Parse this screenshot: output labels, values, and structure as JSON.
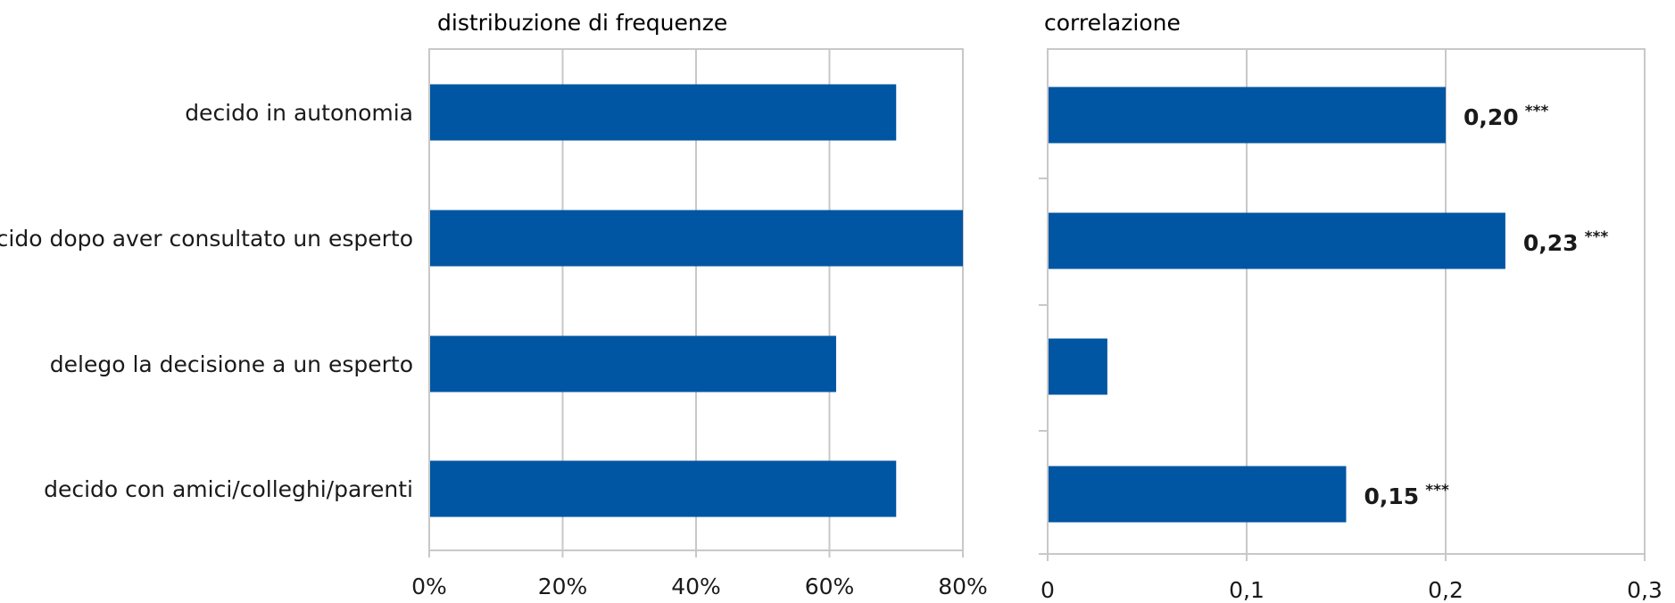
{
  "colors": {
    "bar": "#0056a2",
    "grid": "#c8c8c8",
    "text": "#1a1a1a"
  },
  "chart_data": [
    {
      "type": "bar",
      "orientation": "horizontal",
      "title": "distribuzione di frequenze",
      "categories": [
        "decido in autonomia",
        "decido dopo aver consultato un esperto",
        "delego la decisione a un esperto",
        "decido con amici/colleghi/parenti"
      ],
      "values": [
        70,
        80,
        61,
        70
      ],
      "xlim": [
        0,
        80
      ],
      "xticks": [
        0,
        20,
        40,
        60,
        80
      ],
      "xtick_labels": [
        "0%",
        "20%",
        "40%",
        "60%",
        "80%"
      ],
      "grid": true
    },
    {
      "type": "bar",
      "orientation": "horizontal",
      "title": "correlazione",
      "categories": [
        "decido in autonomia",
        "decido dopo aver consultato un esperto",
        "delego la decisione a un esperto",
        "decido con amici/colleghi/parenti"
      ],
      "values": [
        0.2,
        0.23,
        0.03,
        0.15
      ],
      "data_labels": [
        {
          "value": "0,20",
          "sig": "***"
        },
        {
          "value": "0,23",
          "sig": "***"
        },
        {
          "value": "",
          "sig": ""
        },
        {
          "value": "0,15",
          "sig": "***"
        }
      ],
      "xlim": [
        0,
        0.3
      ],
      "xticks": [
        0,
        0.1,
        0.2,
        0.3
      ],
      "xtick_labels": [
        "0",
        "0,1",
        "0,2",
        "0,3"
      ],
      "grid": true
    }
  ]
}
